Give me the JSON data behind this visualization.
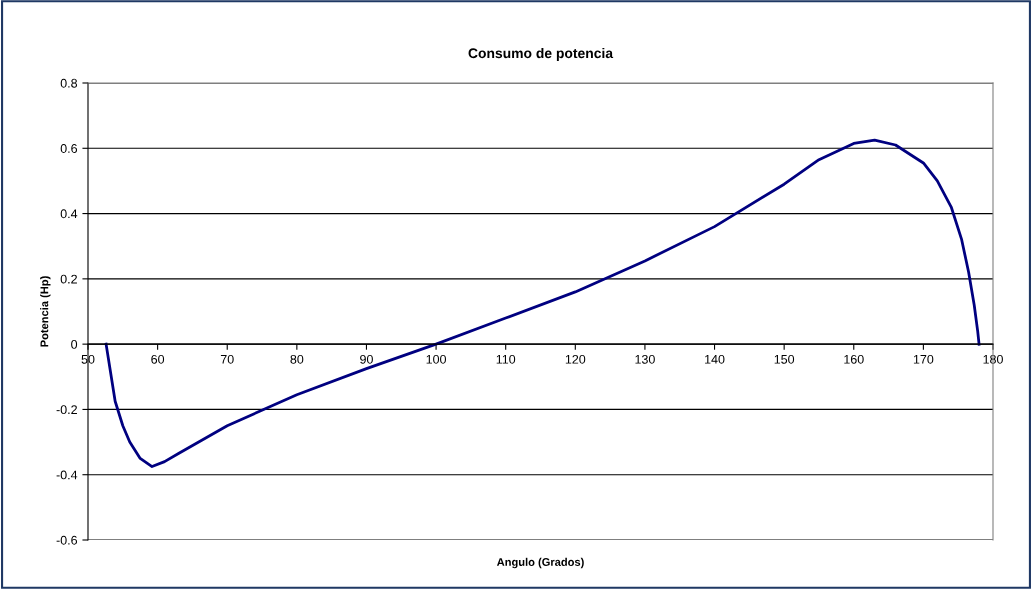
{
  "chart_data": {
    "type": "line",
    "title": "Consumo de potencia",
    "xlabel": "Angulo (Grados)",
    "ylabel": "Potencia (Hp)",
    "x": [
      52.6,
      53.9,
      55,
      56,
      57.5,
      59.2,
      61,
      63,
      70,
      80,
      90,
      100,
      110,
      120,
      130,
      140,
      150,
      155,
      160,
      163,
      166,
      170,
      172,
      174,
      175.5,
      176.5,
      177.3,
      177.8,
      178
    ],
    "series": [
      {
        "color": "#000080",
        "values": [
          0,
          -0.175,
          -0.25,
          -0.3,
          -0.35,
          -0.375,
          -0.36,
          -0.335,
          -0.25,
          -0.155,
          -0.075,
          0,
          0.08,
          0.16,
          0.255,
          0.36,
          0.49,
          0.565,
          0.615,
          0.625,
          0.61,
          0.555,
          0.5,
          0.42,
          0.32,
          0.22,
          0.12,
          0.04,
          0
        ]
      }
    ],
    "xlim": [
      50,
      180
    ],
    "xticks": [
      50,
      60,
      70,
      80,
      90,
      100,
      110,
      120,
      130,
      140,
      150,
      160,
      170,
      180
    ],
    "ylim": [
      -0.6,
      0.8
    ],
    "yticks": [
      -0.6,
      -0.4,
      -0.2,
      0,
      0.2,
      0.4,
      0.6,
      0.8
    ],
    "grid": "y",
    "marker": "none",
    "line_style": "solid",
    "legend": false
  }
}
